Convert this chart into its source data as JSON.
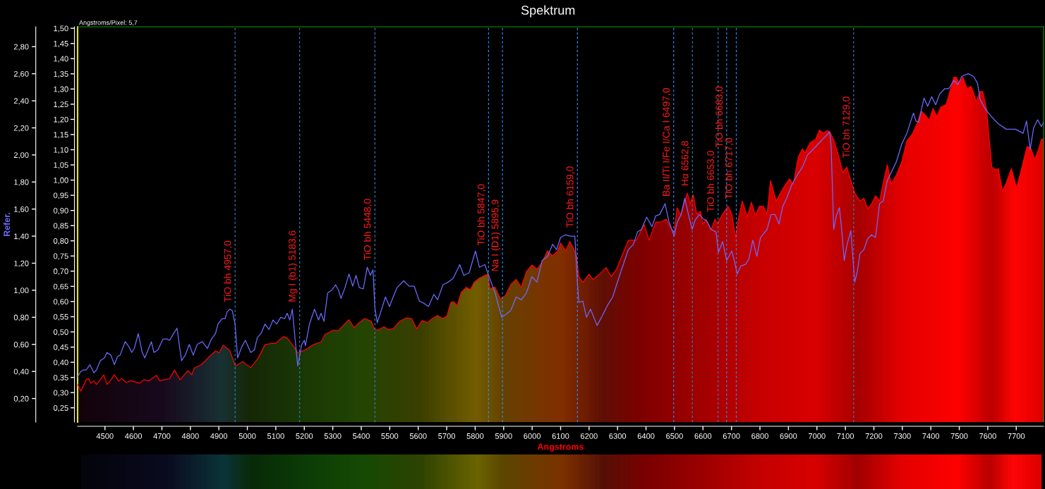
{
  "chart_data": {
    "type": "area",
    "title": "Spektrum",
    "xlabel": "Angstroms",
    "y2label": "Refer.",
    "annotations": [
      "Angstroms/Pixel: 5,7"
    ],
    "xlim": [
      4404,
      7796
    ],
    "xticks": [
      4500,
      4600,
      4700,
      4800,
      4900,
      5000,
      5100,
      5200,
      5300,
      5400,
      5500,
      5600,
      5700,
      5800,
      5900,
      6000,
      6100,
      6200,
      6300,
      6400,
      6500,
      6600,
      6700,
      6800,
      6900,
      7000,
      7100,
      7200,
      7300,
      7400,
      7500,
      7600,
      7700
    ],
    "ylim": [
      0.203,
      1.505
    ],
    "yticks": [
      {
        "value": 0.25,
        "label": "0,25"
      },
      {
        "value": 0.3,
        "label": "0,30"
      },
      {
        "value": 0.35,
        "label": "0,35"
      },
      {
        "value": 0.4,
        "label": "0,40"
      },
      {
        "value": 0.45,
        "label": "0,45"
      },
      {
        "value": 0.5,
        "label": "0,50"
      },
      {
        "value": 0.55,
        "label": "0,55"
      },
      {
        "value": 0.6,
        "label": "0,60"
      },
      {
        "value": 0.65,
        "label": "0,65"
      },
      {
        "value": 0.7,
        "label": "0,70"
      },
      {
        "value": 0.75,
        "label": "0,75"
      },
      {
        "value": 0.8,
        "label": "0,80"
      },
      {
        "value": 0.85,
        "label": "0,85"
      },
      {
        "value": 0.9,
        "label": "0,90"
      },
      {
        "value": 0.95,
        "label": "0,95"
      },
      {
        "value": 1.0,
        "label": "1,00"
      },
      {
        "value": 1.05,
        "label": "1,05"
      },
      {
        "value": 1.1,
        "label": "1,10"
      },
      {
        "value": 1.15,
        "label": "1,15"
      },
      {
        "value": 1.2,
        "label": "1,20"
      },
      {
        "value": 1.25,
        "label": "1,25"
      },
      {
        "value": 1.3,
        "label": "1,30"
      },
      {
        "value": 1.35,
        "label": "1,35"
      },
      {
        "value": 1.4,
        "label": "1,40"
      },
      {
        "value": 1.45,
        "label": "1,45"
      },
      {
        "value": 1.5,
        "label": "1,50"
      }
    ],
    "y2lim": [
      0.026,
      2.947
    ],
    "y2ticks": [
      {
        "value": 0.2,
        "label": "0,20"
      },
      {
        "value": 0.4,
        "label": "0,40"
      },
      {
        "value": 0.6,
        "label": "0,60"
      },
      {
        "value": 0.8,
        "label": "0,80"
      },
      {
        "value": 1.0,
        "label": "1,00"
      },
      {
        "value": 1.2,
        "label": "1,20"
      },
      {
        "value": 1.4,
        "label": "1,40"
      },
      {
        "value": 1.6,
        "label": "1,60"
      },
      {
        "value": 1.8,
        "label": "1,80"
      },
      {
        "value": 2.0,
        "label": "2,00"
      },
      {
        "value": 2.2,
        "label": "2,20"
      },
      {
        "value": 2.4,
        "label": "2,40"
      },
      {
        "value": 2.6,
        "label": "2,60"
      },
      {
        "value": 2.8,
        "label": "2,80"
      }
    ],
    "series": [
      {
        "axis": "y",
        "color": "#ff0000",
        "x": [
          4404,
          4415,
          4434,
          4443,
          4450,
          4461,
          4470,
          4484,
          4496,
          4507,
          4521,
          4533,
          4548,
          4558,
          4576,
          4590,
          4603,
          4622,
          4636,
          4654,
          4681,
          4692,
          4727,
          4744,
          4764,
          4791,
          4805,
          4814,
          4837,
          4865,
          4888,
          4902,
          4915,
          4938,
          4958,
          4984,
          5012,
          5039,
          5062,
          5085,
          5099,
          5126,
          5140,
          5168,
          5177,
          5204,
          5232,
          5259,
          5273,
          5301,
          5320,
          5338,
          5357,
          5375,
          5393,
          5412,
          5435,
          5446,
          5457,
          5480,
          5494,
          5512,
          5535,
          5558,
          5577,
          5595,
          5613,
          5632,
          5650,
          5668,
          5687,
          5701,
          5714,
          5723,
          5737,
          5751,
          5769,
          5783,
          5797,
          5815,
          5834,
          5845,
          5852,
          5870,
          5889,
          5907,
          5925,
          5944,
          5962,
          5980,
          5999,
          6017,
          6035,
          6054,
          6072,
          6090,
          6100,
          6118,
          6132,
          6145,
          6156,
          6164,
          6178,
          6200,
          6214,
          6237,
          6260,
          6278,
          6297,
          6315,
          6338,
          6366,
          6393,
          6411,
          6434,
          6453,
          6471,
          6485,
          6499,
          6509,
          6523,
          6536,
          6545,
          6555,
          6566,
          6578,
          6591,
          6600,
          6610,
          6628,
          6642,
          6651,
          6669,
          6688,
          6701,
          6715,
          6724,
          6738,
          6756,
          6770,
          6784,
          6798,
          6811,
          6825,
          6837,
          6857,
          6876,
          6903,
          6917,
          6935,
          6949,
          6958,
          6977,
          6995,
          7009,
          7022,
          7036,
          7045,
          7059,
          7077,
          7091,
          7105,
          7119,
          7133,
          7151,
          7165,
          7178,
          7192,
          7206,
          7220,
          7233,
          7247,
          7261,
          7279,
          7298,
          7316,
          7334,
          7353,
          7366,
          7380,
          7394,
          7408,
          7421,
          7435,
          7454,
          7467,
          7481,
          7490,
          7499,
          7513,
          7527,
          7541,
          7550,
          7559,
          7573,
          7582,
          7596,
          7605,
          7614,
          7628,
          7637,
          7651,
          7665,
          7683,
          7701,
          7720,
          7738,
          7752,
          7765,
          7779,
          7788,
          7796
        ],
        "values": [
          0.327,
          0.305,
          0.342,
          0.346,
          0.331,
          0.338,
          0.327,
          0.342,
          0.359,
          0.327,
          0.342,
          0.359,
          0.338,
          0.346,
          0.333,
          0.339,
          0.336,
          0.331,
          0.342,
          0.339,
          0.357,
          0.339,
          0.346,
          0.374,
          0.342,
          0.372,
          0.359,
          0.381,
          0.391,
          0.417,
          0.437,
          0.432,
          0.456,
          0.439,
          0.388,
          0.402,
          0.382,
          0.415,
          0.458,
          0.462,
          0.462,
          0.484,
          0.48,
          0.445,
          0.431,
          0.441,
          0.458,
          0.467,
          0.492,
          0.505,
          0.505,
          0.522,
          0.54,
          0.514,
          0.531,
          0.544,
          0.535,
          0.51,
          0.505,
          0.517,
          0.508,
          0.51,
          0.535,
          0.546,
          0.544,
          0.51,
          0.537,
          0.531,
          0.544,
          0.554,
          0.544,
          0.553,
          0.596,
          0.6,
          0.587,
          0.63,
          0.647,
          0.639,
          0.664,
          0.677,
          0.686,
          0.69,
          0.643,
          0.647,
          0.608,
          0.621,
          0.656,
          0.673,
          0.647,
          0.699,
          0.72,
          0.707,
          0.729,
          0.767,
          0.75,
          0.767,
          0.793,
          0.767,
          0.798,
          0.776,
          0.75,
          0.682,
          0.664,
          0.69,
          0.673,
          0.69,
          0.712,
          0.682,
          0.707,
          0.75,
          0.802,
          0.802,
          0.854,
          0.802,
          0.862,
          0.862,
          0.871,
          0.845,
          0.828,
          0.909,
          0.884,
          0.931,
          0.957,
          0.922,
          0.952,
          0.888,
          0.897,
          0.854,
          0.871,
          0.836,
          0.871,
          0.858,
          0.888,
          0.914,
          0.888,
          0.81,
          0.871,
          0.931,
          0.879,
          0.927,
          0.884,
          0.914,
          0.914,
          0.888,
          0.998,
          0.931,
          0.965,
          1.004,
          0.987,
          1.077,
          1.103,
          1.09,
          1.124,
          1.133,
          1.165,
          1.154,
          1.163,
          1.159,
          1.133,
          1.077,
          1.025,
          1.043,
          1.0,
          0.957,
          0.931,
          0.94,
          0.905,
          0.922,
          0.948,
          0.931,
          0.991,
          1.051,
          0.987,
          1.017,
          1.06,
          1.129,
          1.15,
          1.189,
          1.227,
          1.215,
          1.197,
          1.236,
          1.21,
          1.24,
          1.249,
          1.292,
          1.339,
          1.339,
          1.318,
          1.339,
          1.301,
          1.309,
          1.288,
          1.258,
          1.292,
          1.292,
          1.232,
          1.137,
          1.043,
          1.034,
          1.038,
          0.965,
          0.991,
          1.038,
          0.974,
          1.043,
          1.111,
          1.103,
          1.068,
          1.103,
          1.133,
          1.137
        ]
      },
      {
        "type": "line",
        "axis": "y2",
        "color": "#6a6aff",
        "x": [
          4404,
          4415,
          4423,
          4434,
          4447,
          4461,
          4470,
          4484,
          4498,
          4507,
          4521,
          4533,
          4544,
          4553,
          4571,
          4585,
          4594,
          4603,
          4617,
          4631,
          4640,
          4663,
          4672,
          4686,
          4704,
          4718,
          4727,
          4741,
          4753,
          4769,
          4782,
          4796,
          4810,
          4824,
          4842,
          4860,
          4874,
          4888,
          4897,
          4911,
          4922,
          4929,
          4938,
          4947,
          4957,
          4966,
          4980,
          4993,
          5012,
          5025,
          5035,
          5048,
          5062,
          5076,
          5090,
          5103,
          5117,
          5131,
          5140,
          5149,
          5158,
          5168,
          5177,
          5191,
          5200,
          5204,
          5218,
          5236,
          5250,
          5259,
          5269,
          5282,
          5296,
          5310,
          5320,
          5329,
          5343,
          5357,
          5370,
          5382,
          5393,
          5407,
          5421,
          5432,
          5441,
          5448,
          5456,
          5467,
          5485,
          5499,
          5512,
          5526,
          5549,
          5568,
          5586,
          5604,
          5623,
          5636,
          5655,
          5668,
          5687,
          5705,
          5723,
          5746,
          5760,
          5779,
          5801,
          5815,
          5834,
          5847,
          5870,
          5893,
          5907,
          5925,
          5944,
          5962,
          5980,
          5999,
          6017,
          6035,
          6054,
          6072,
          6086,
          6100,
          6118,
          6132,
          6150,
          6159,
          6164,
          6178,
          6191,
          6205,
          6228,
          6246,
          6265,
          6283,
          6301,
          6320,
          6338,
          6356,
          6370,
          6384,
          6402,
          6421,
          6434,
          6448,
          6467,
          6480,
          6499,
          6509,
          6523,
          6536,
          6550,
          6562,
          6573,
          6587,
          6600,
          6614,
          6628,
          6646,
          6654,
          6669,
          6683,
          6701,
          6711,
          6720,
          6733,
          6749,
          6761,
          6775,
          6789,
          6802,
          6825,
          6839,
          6853,
          6867,
          6880,
          6894,
          6912,
          6931,
          6949,
          6967,
          6986,
          7004,
          7022,
          7045,
          7050,
          7059,
          7068,
          7079,
          7087,
          7096,
          7105,
          7119,
          7133,
          7142,
          7151,
          7165,
          7178,
          7192,
          7206,
          7220,
          7233,
          7247,
          7261,
          7279,
          7298,
          7316,
          7339,
          7348,
          7357,
          7376,
          7389,
          7403,
          7417,
          7431,
          7449,
          7463,
          7481,
          7495,
          7509,
          7518,
          7532,
          7550,
          7564,
          7573,
          7591,
          7610,
          7637,
          7665,
          7697,
          7724,
          7736,
          7749,
          7761,
          7775,
          7788,
          7796
        ],
        "values": [
          0.36,
          0.4,
          0.41,
          0.41,
          0.45,
          0.39,
          0.41,
          0.48,
          0.5,
          0.54,
          0.52,
          0.45,
          0.51,
          0.52,
          0.62,
          0.58,
          0.54,
          0.57,
          0.68,
          0.54,
          0.5,
          0.62,
          0.54,
          0.56,
          0.64,
          0.64,
          0.63,
          0.68,
          0.72,
          0.48,
          0.52,
          0.6,
          0.52,
          0.6,
          0.62,
          0.57,
          0.64,
          0.68,
          0.75,
          0.79,
          0.79,
          0.84,
          0.86,
          0.85,
          0.75,
          0.5,
          0.58,
          0.63,
          0.54,
          0.56,
          0.65,
          0.68,
          0.75,
          0.71,
          0.78,
          0.75,
          0.8,
          0.79,
          0.83,
          0.78,
          0.86,
          0.63,
          0.44,
          0.6,
          0.63,
          0.59,
          0.75,
          0.86,
          0.78,
          0.83,
          0.77,
          0.98,
          1.0,
          1.04,
          1.0,
          0.94,
          1.02,
          1.12,
          1.03,
          1.11,
          1.02,
          1.01,
          1.17,
          1.11,
          1.15,
          0.87,
          0.76,
          0.83,
          0.95,
          0.88,
          0.95,
          1.02,
          1.07,
          1.03,
          1.03,
          0.92,
          0.9,
          0.88,
          0.97,
          0.93,
          1.04,
          1.06,
          1.09,
          1.19,
          1.11,
          1.13,
          1.29,
          1.17,
          1.19,
          1.11,
          0.98,
          0.8,
          0.82,
          0.85,
          0.95,
          0.93,
          0.98,
          1.1,
          1.06,
          1.22,
          1.25,
          1.34,
          1.3,
          1.39,
          1.41,
          1.4,
          1.4,
          1.06,
          0.91,
          0.92,
          0.8,
          0.86,
          0.74,
          0.81,
          0.89,
          0.95,
          1.07,
          1.19,
          1.3,
          1.34,
          1.43,
          1.45,
          1.54,
          1.47,
          1.55,
          1.56,
          1.64,
          1.51,
          1.4,
          1.5,
          1.56,
          1.68,
          1.55,
          1.45,
          1.52,
          1.56,
          1.53,
          1.51,
          1.45,
          1.43,
          1.28,
          1.36,
          1.22,
          1.29,
          1.21,
          1.12,
          1.18,
          1.19,
          1.23,
          1.37,
          1.25,
          1.39,
          1.45,
          1.56,
          1.56,
          1.49,
          1.62,
          1.68,
          1.78,
          1.85,
          1.91,
          2.0,
          2.04,
          2.08,
          2.12,
          2.17,
          2.06,
          1.45,
          1.55,
          1.61,
          1.45,
          1.22,
          1.33,
          1.44,
          1.06,
          1.14,
          1.27,
          1.3,
          1.38,
          1.41,
          1.39,
          1.64,
          1.66,
          1.81,
          1.87,
          1.95,
          2.08,
          2.16,
          2.31,
          2.25,
          2.24,
          2.42,
          2.36,
          2.43,
          2.37,
          2.45,
          2.49,
          2.49,
          2.55,
          2.52,
          2.58,
          2.59,
          2.6,
          2.58,
          2.53,
          2.41,
          2.34,
          2.29,
          2.23,
          2.19,
          2.19,
          2.16,
          2.25,
          2.04,
          2.2,
          2.26,
          2.21,
          2.24
        ]
      }
    ],
    "ref_lines": [
      {
        "axis": "x",
        "value": 4957.0,
        "label": "TiO bh 4957,0",
        "color": "#2a7fbf",
        "line_style": "dashed"
      },
      {
        "axis": "x",
        "value": 5183.6,
        "label": "Mg I (b1) 5183,6",
        "color": "#2a7fbf",
        "line_style": "dashed"
      },
      {
        "axis": "x",
        "value": 5448.0,
        "label": "TiO bh 5448,0",
        "color": "#2a7fbf",
        "line_style": "dashed"
      },
      {
        "axis": "x",
        "value": 5847.0,
        "label": "TiO bh 5847,0",
        "color": "#1e90ff",
        "line_style": "dashed"
      },
      {
        "axis": "x",
        "value": 5895.9,
        "label": "Na I (D1) 5895,9",
        "color": "#1e90ff",
        "line_style": "dashed"
      },
      {
        "axis": "x",
        "value": 6159.0,
        "label": "TiO bh 6159,0",
        "color": "#1e90ff",
        "line_style": "dashed"
      },
      {
        "axis": "x",
        "value": 6497.0,
        "label": "Ba II/Ti I/Fe I/Ca I 6497,0",
        "color": "#1e90ff",
        "line_style": "dashed"
      },
      {
        "axis": "x",
        "value": 6562.8,
        "label": "Hα 6562,8",
        "color": "#2a7fbf",
        "line_style": "dashed"
      },
      {
        "axis": "x",
        "value": 6653.0,
        "label": "TiO bh 6653,0",
        "color": "#2a7fbf",
        "line_style": "dashed"
      },
      {
        "axis": "x",
        "value": 6683.0,
        "label": "TiO bh 6683,0",
        "color": "#1e90ff",
        "line_style": "dashed"
      },
      {
        "axis": "x",
        "value": 6717.0,
        "label": "TiO bh 6717,0",
        "color": "#1e90ff",
        "line_style": "dashed"
      },
      {
        "axis": "x",
        "value": 7129.0,
        "label": "TiO bh 7129,0",
        "color": "#2a7fbf",
        "line_style": "dashed"
      }
    ]
  }
}
